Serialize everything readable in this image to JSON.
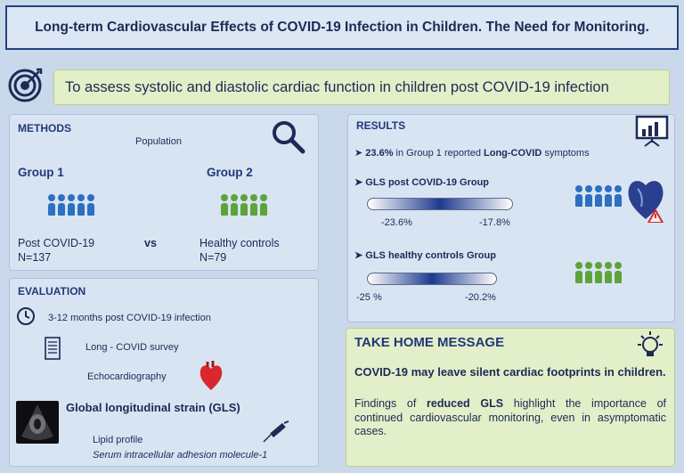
{
  "title": "Long-term Cardiovascular Effects of COVID-19 Infection in Children. The Need for Monitoring.",
  "aim": "To assess systolic and diastolic cardiac function in children post COVID-19 infection",
  "methods": {
    "heading": "METHODS",
    "population_label": "Population",
    "group1": {
      "name": "Group 1",
      "desc": "Post COVID-19",
      "n": "N=137"
    },
    "vs": "vs",
    "group2": {
      "name": "Group 2",
      "desc": "Healthy controls",
      "n": "N=79"
    }
  },
  "evaluation": {
    "heading": "EVALUATION",
    "items": {
      "timing": "3-12 months post COVID-19 infection",
      "survey": "Long - COVID survey",
      "echo": "Echocardiography",
      "gls": "Global longitudinal strain (GLS)",
      "lipid": "Lipid profile",
      "icam": "Serum intracellular adhesion molecule-1"
    }
  },
  "results": {
    "heading": "RESULTS",
    "item1_pct": "23.6%",
    "item1_mid": " in Group 1 reported ",
    "item1_bold": "Long-COVID",
    "item1_end": " symptoms",
    "gls_covid": {
      "label": "GLS post COVID-19 Group",
      "min": "-23.6%",
      "max": "-17.8%"
    },
    "gls_healthy": {
      "label": "GLS healthy controls Group",
      "min": "-25 %",
      "max": "-20.2%"
    }
  },
  "take_home": {
    "heading": "TAKE HOME MESSAGE",
    "bold_text": "COVID-19 may leave silent cardiac footprints in children.",
    "text_start": "Findings of ",
    "text_bold": "reduced GLS",
    "text_end": " highlight the importance of continued cardiovascular monitoring, even in asymptomatic cases."
  },
  "colors": {
    "title_border": "#23407e",
    "green_box": "#e3efc8",
    "panel": "#d8e4f2",
    "people_blue": "#2d6fc2",
    "people_green": "#5ea33a",
    "heart_red": "#d8282e"
  },
  "icons": [
    "target-icon",
    "search-icon",
    "presentation-icon",
    "clock-icon",
    "survey-icon",
    "heart-icon",
    "echo-image",
    "syringe-icon",
    "lightbulb-icon",
    "heart-warning-icon"
  ]
}
